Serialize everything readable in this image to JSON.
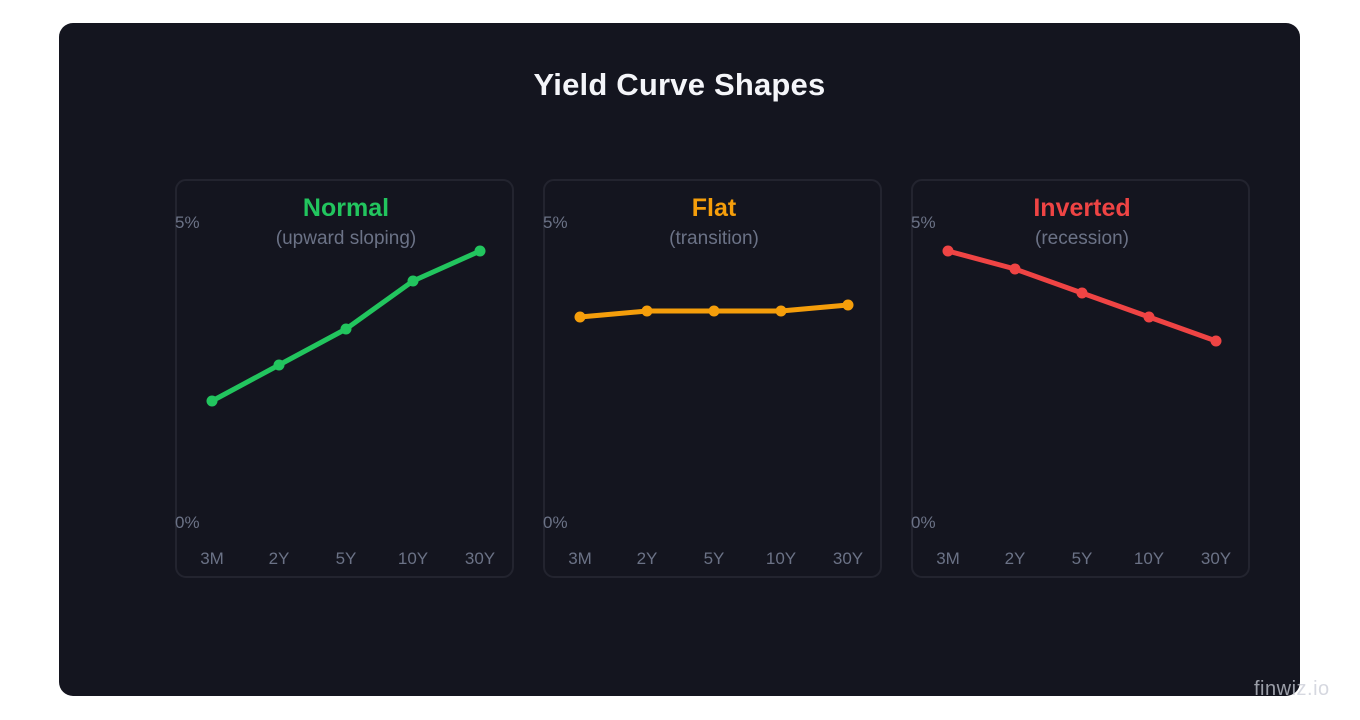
{
  "title": "Yield Curve Shapes",
  "watermark": "finwiz.io",
  "colors": {
    "background": "#14151f",
    "panel_border": "#23242f",
    "axis_text": "#6b7286",
    "subtitle_text": "#6b7286",
    "title_text": "#f4f5f9"
  },
  "chart_data": [
    {
      "type": "line",
      "title": "Normal",
      "subtitle": "(upward sloping)",
      "color": "#22c55e",
      "categories": [
        "3M",
        "2Y",
        "5Y",
        "10Y",
        "30Y"
      ],
      "values": [
        2.0,
        2.6,
        3.2,
        4.0,
        4.5
      ],
      "ylim": [
        0,
        5
      ],
      "yticks": [
        "0%",
        "5%"
      ],
      "xlabel": "",
      "ylabel": "",
      "grid": false
    },
    {
      "type": "line",
      "title": "Flat",
      "subtitle": "(transition)",
      "color": "#f59e0b",
      "categories": [
        "3M",
        "2Y",
        "5Y",
        "10Y",
        "30Y"
      ],
      "values": [
        3.4,
        3.5,
        3.5,
        3.5,
        3.6
      ],
      "ylim": [
        0,
        5
      ],
      "yticks": [
        "0%",
        "5%"
      ],
      "xlabel": "",
      "ylabel": "",
      "grid": false
    },
    {
      "type": "line",
      "title": "Inverted",
      "subtitle": "(recession)",
      "color": "#ef4444",
      "categories": [
        "3M",
        "2Y",
        "5Y",
        "10Y",
        "30Y"
      ],
      "values": [
        4.5,
        4.2,
        3.8,
        3.4,
        3.0
      ],
      "ylim": [
        0,
        5
      ],
      "yticks": [
        "0%",
        "5%"
      ],
      "xlabel": "",
      "ylabel": "",
      "grid": false
    }
  ]
}
